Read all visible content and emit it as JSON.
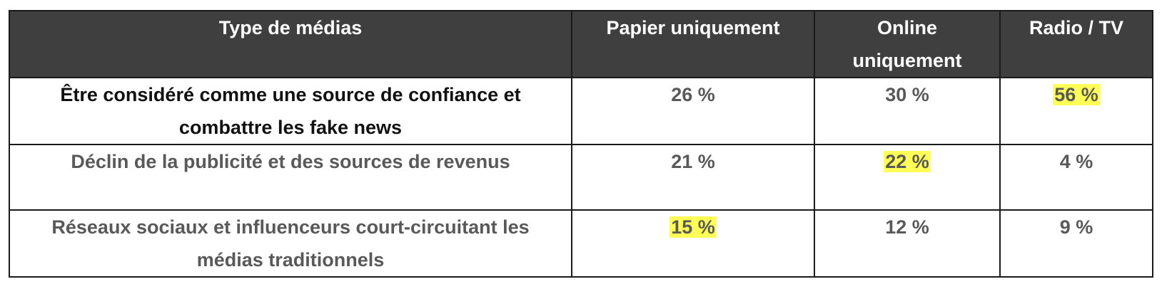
{
  "table": {
    "header": [
      "Type de médias",
      "Papier uniquement",
      "Online uniquement",
      "Radio / TV"
    ],
    "rows": [
      [
        "Être considéré comme une source de confiance et combattre les fake news",
        "26 %",
        "30 %",
        "56 %"
      ],
      [
        "Déclin de la publicité et des sources de revenus",
        "21 %",
        "22 %",
        "4 %"
      ],
      [
        "Réseaux sociaux et influenceurs court-circuitant les médias traditionnels",
        "15 %",
        "12 %",
        "9 %"
      ]
    ]
  }
}
